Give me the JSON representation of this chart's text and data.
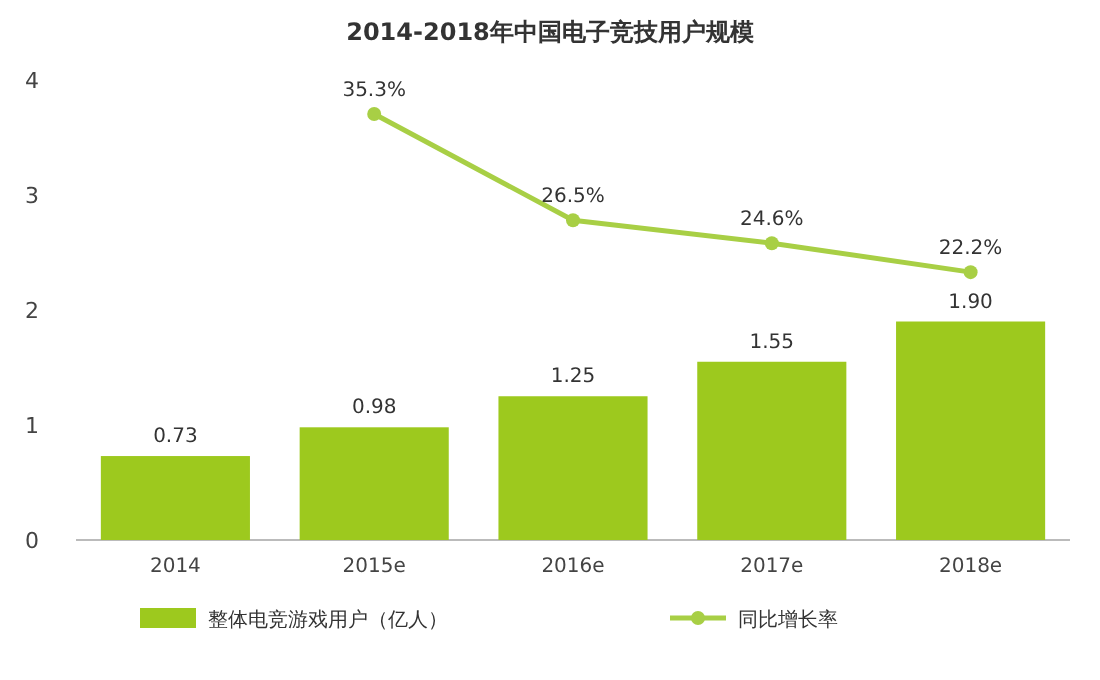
{
  "chart_data": {
    "type": "bar",
    "title": "2014-2018年中国电子竞技用户规模",
    "categories": [
      "2014",
      "2015e",
      "2016e",
      "2017e",
      "2018e"
    ],
    "series": [
      {
        "name": "整体电竞游戏用户（亿人）",
        "color": "#9dc91e",
        "values": [
          0.73,
          0.98,
          1.25,
          1.55,
          1.9
        ],
        "value_labels": [
          "0.73",
          "0.98",
          "1.25",
          "1.55",
          "1.90"
        ]
      },
      {
        "name": "同比增长率",
        "type": "line",
        "axis": "y2",
        "color": "#a8cf45",
        "marker": "circle",
        "values": [
          null,
          35.3,
          26.5,
          24.6,
          22.2
        ],
        "value_labels": [
          null,
          "35.3%",
          "26.5%",
          "24.6%",
          "22.2%"
        ]
      }
    ],
    "ylim": [
      0,
      4
    ],
    "yticks": [
      0,
      1,
      2,
      3,
      4
    ],
    "legend": "bottom",
    "grid": false
  }
}
